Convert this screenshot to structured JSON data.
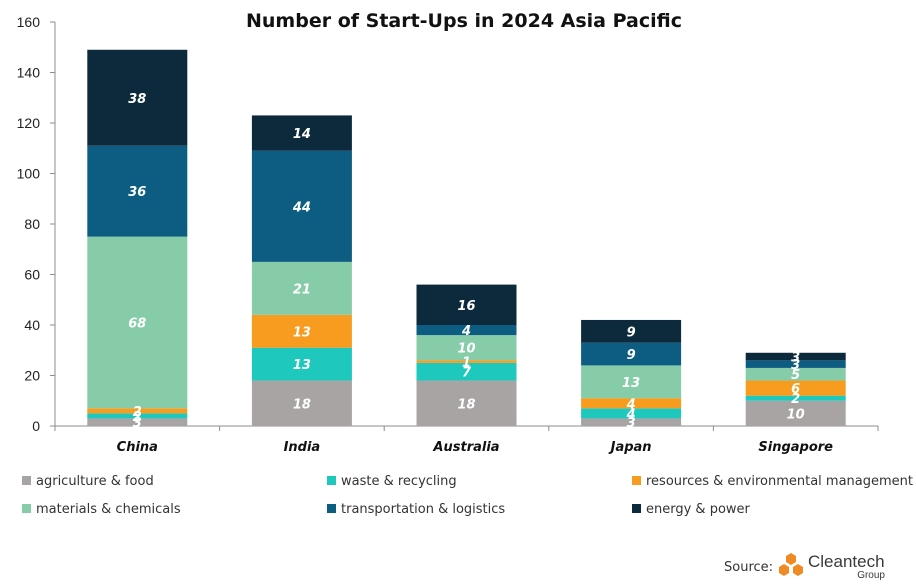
{
  "chart_data": {
    "type": "bar",
    "stacked": true,
    "title": "Number of Start-Ups in 2024 Asia Pacific",
    "categories": [
      "China",
      "India",
      "Australia",
      "Japan",
      "Singapore"
    ],
    "ylim": [
      0,
      160
    ],
    "yticks": [
      0,
      20,
      40,
      60,
      80,
      100,
      120,
      140,
      160
    ],
    "series": [
      {
        "name": "agriculture & food",
        "color": "#a8a4a4",
        "values": [
          3,
          18,
          18,
          3,
          10
        ]
      },
      {
        "name": "waste & recycling",
        "color": "#1ec8bd",
        "values": [
          2,
          13,
          7,
          4,
          2
        ]
      },
      {
        "name": "resources & environmental management",
        "color": "#f79c1e",
        "values": [
          2,
          13,
          1,
          4,
          6
        ]
      },
      {
        "name": "materials & chemicals",
        "color": "#86cca8",
        "values": [
          68,
          21,
          10,
          13,
          5
        ]
      },
      {
        "name": "transportation & logistics",
        "color": "#0d5c82",
        "values": [
          36,
          44,
          4,
          9,
          3
        ]
      },
      {
        "name": "energy & power",
        "color": "#0d2a3c",
        "values": [
          38,
          14,
          16,
          9,
          3
        ]
      }
    ],
    "legend_position": "bottom",
    "grid": false
  },
  "source": {
    "label": "Source:",
    "logo_text": "Cleantech",
    "logo_subtext": "Group"
  }
}
